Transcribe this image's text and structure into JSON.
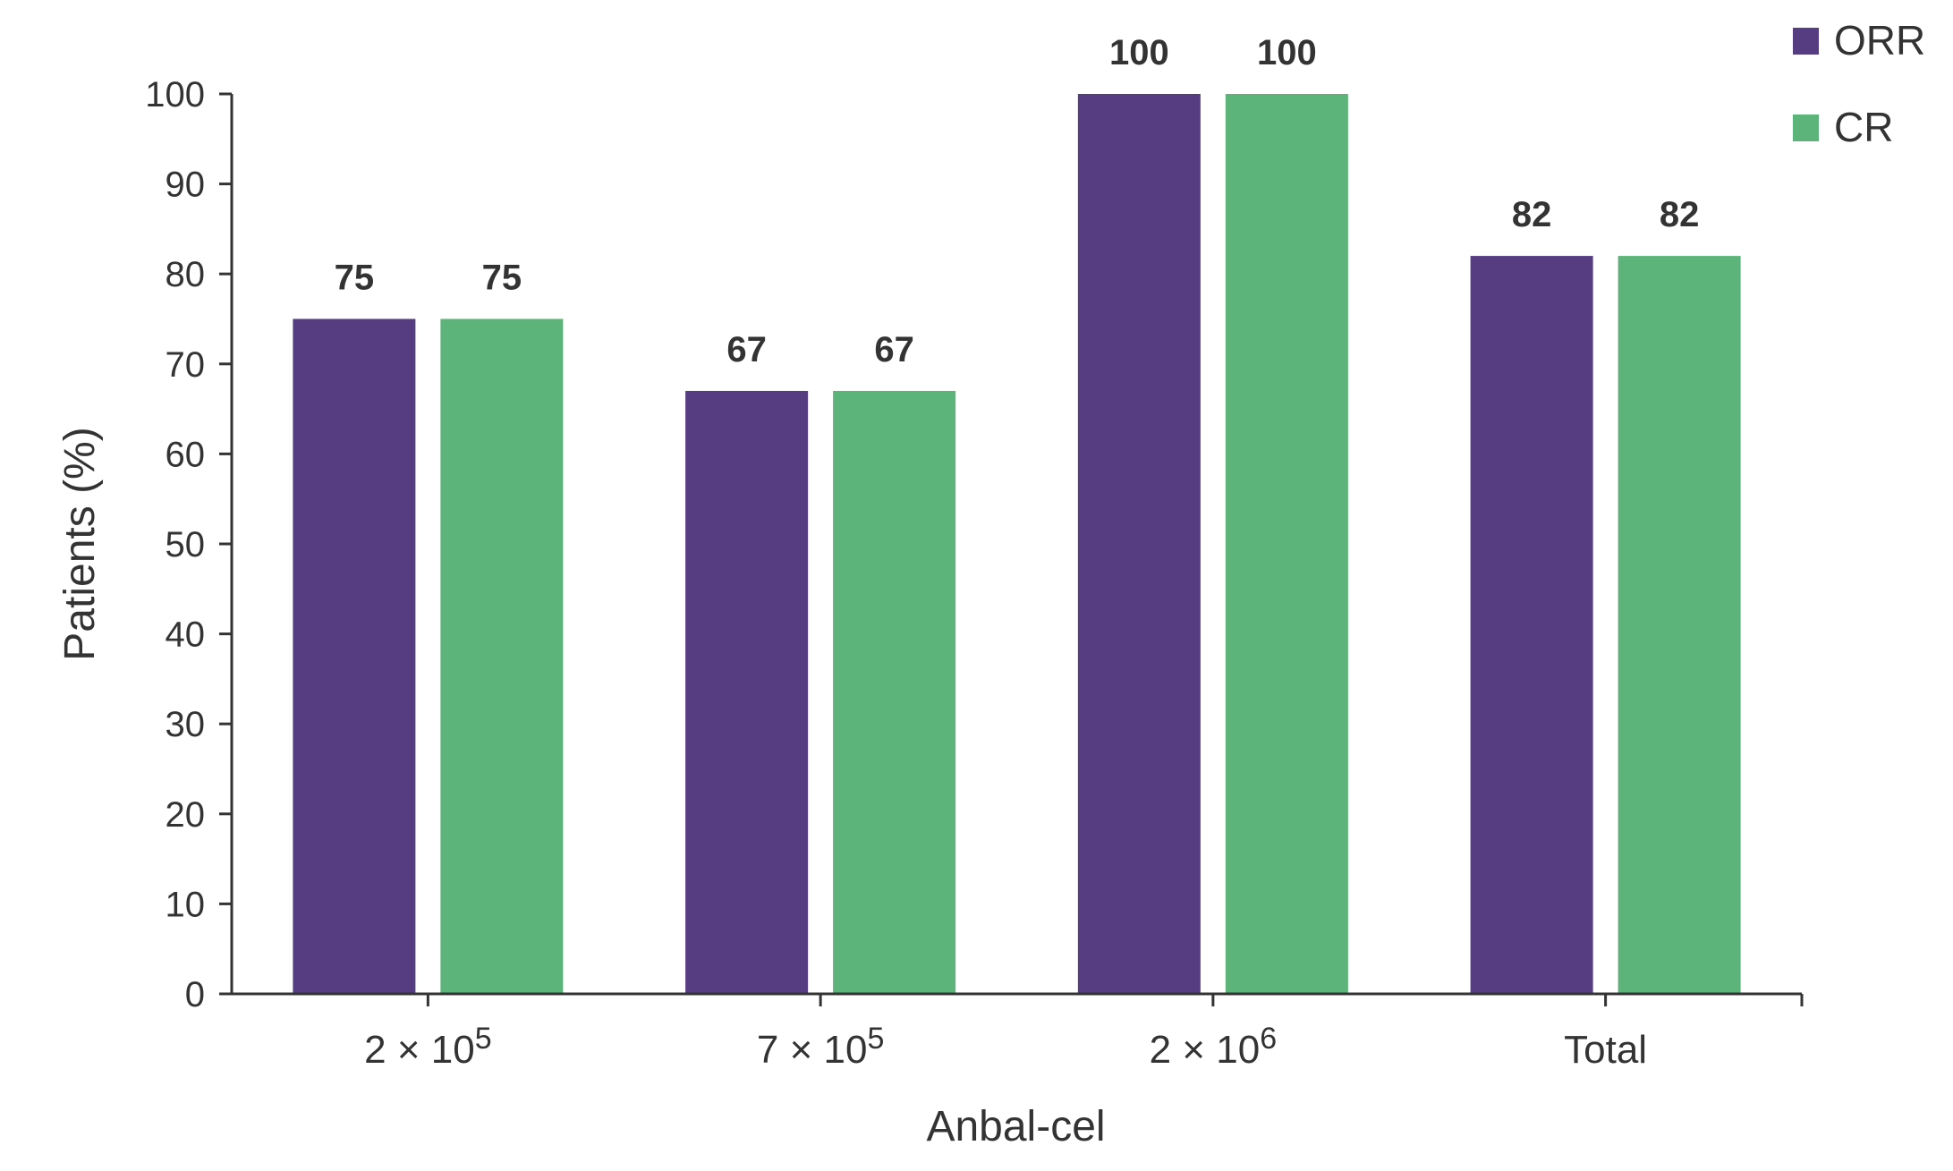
{
  "chart_data": {
    "type": "bar",
    "title": "",
    "xlabel": "Anbal-cel",
    "ylabel": "Patients (%)",
    "ylim": [
      0,
      100
    ],
    "yticks": [
      0,
      10,
      20,
      30,
      40,
      50,
      60,
      70,
      80,
      90,
      100
    ],
    "grid": false,
    "legend_position": "top-right",
    "categories": [
      {
        "base": "2 × 10",
        "exp": "5"
      },
      {
        "base": "7 × 10",
        "exp": "5"
      },
      {
        "base": "2 × 10",
        "exp": "6"
      },
      {
        "base": "Total",
        "exp": ""
      }
    ],
    "series": [
      {
        "name": "ORR",
        "color": "#563d82",
        "values": [
          75,
          67,
          100,
          82
        ]
      },
      {
        "name": "CR",
        "color": "#5db47a",
        "values": [
          75,
          67,
          100,
          82
        ]
      }
    ]
  }
}
